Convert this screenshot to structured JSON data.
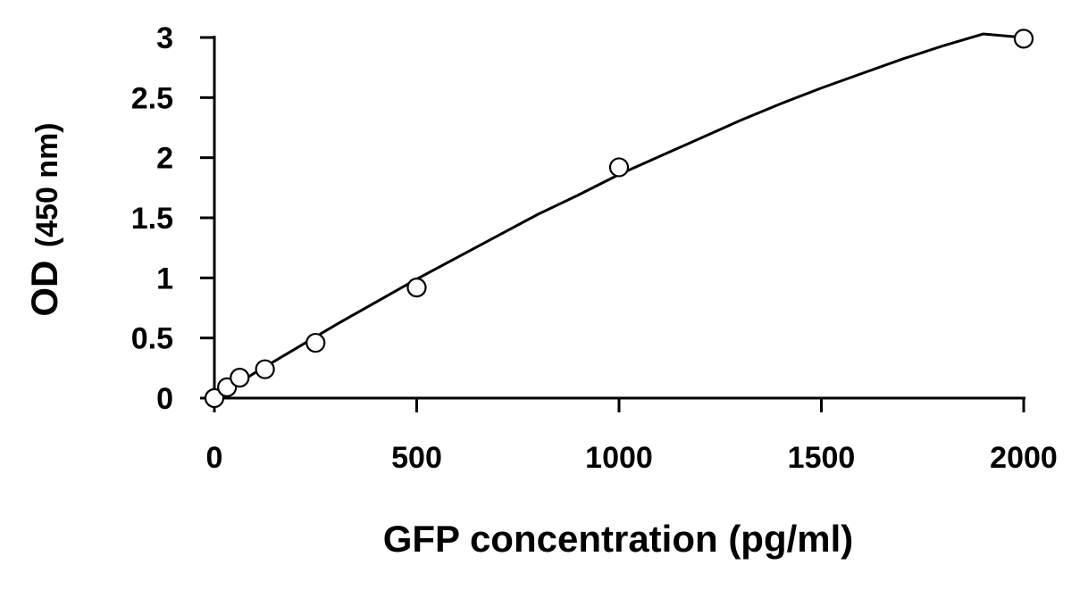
{
  "chart_data": {
    "type": "scatter",
    "xlabel": "GFP concentration (pg/ml)",
    "ylabel_main": "OD",
    "ylabel_unit": "(450 nm)",
    "xlim": [
      0,
      2000
    ],
    "ylim": [
      0,
      3
    ],
    "x_ticks": [
      0,
      500,
      1000,
      1500,
      2000
    ],
    "x_tick_labels": [
      "0",
      "500",
      "1000",
      "1500",
      "2000"
    ],
    "y_ticks": [
      0,
      0.5,
      1,
      1.5,
      2,
      2.5,
      3
    ],
    "y_tick_labels": [
      "0",
      "0.5",
      "1",
      "1.5",
      "2",
      "2.5",
      "3"
    ],
    "grid": false,
    "legend": "none",
    "series": [
      {
        "marker": "open-circle",
        "x": [
          0,
          31.25,
          62.5,
          125,
          250,
          500,
          1000,
          2000
        ],
        "y": [
          0,
          0.09,
          0.17,
          0.24,
          0.46,
          0.92,
          1.92,
          2.99
        ]
      }
    ],
    "fit_curve": {
      "type": "polynomial-2",
      "x": [
        0,
        100,
        200,
        300,
        400,
        500,
        600,
        700,
        800,
        900,
        1000,
        1100,
        1200,
        1300,
        1400,
        1500,
        1600,
        1700,
        1800,
        1900,
        2000
      ],
      "y": [
        0,
        0.21,
        0.41,
        0.61,
        0.8,
        0.99,
        1.17,
        1.35,
        1.53,
        1.69,
        1.86,
        2.01,
        2.16,
        2.31,
        2.45,
        2.58,
        2.7,
        2.82,
        2.93,
        3.03,
        3.0
      ]
    }
  }
}
